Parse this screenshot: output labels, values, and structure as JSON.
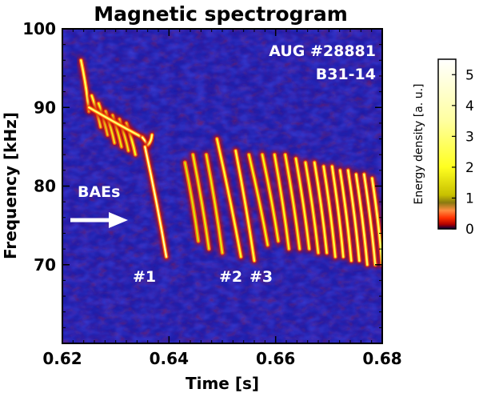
{
  "chart_data": {
    "type": "heatmap",
    "title": "Magnetic spectrogram",
    "xlabel": "Time [s]",
    "ylabel": "Frequency [kHz]",
    "xlim": [
      0.62,
      0.68
    ],
    "ylim": [
      60,
      100
    ],
    "x_ticks": [
      0.62,
      0.64,
      0.66,
      0.68
    ],
    "x_tick_labels": [
      "0.62",
      "0.64",
      "0.66",
      "0.68"
    ],
    "y_ticks": [
      70,
      80,
      90,
      100
    ],
    "y_tick_labels": [
      "70",
      "80",
      "90",
      "100"
    ],
    "annotations": {
      "shot": "AUG #28881",
      "coil": "B31-14",
      "mode_label": "BAEs",
      "burst_1": "#1",
      "burst_2": "#2",
      "burst_3": "#3"
    },
    "colorbar": {
      "label": "Energy density [a. u.]",
      "min": 0,
      "max": 5.5,
      "ticks": [
        0,
        1,
        2,
        3,
        4,
        5
      ],
      "tick_labels": [
        "0",
        "1",
        "2",
        "3",
        "4",
        "5"
      ],
      "stops": [
        {
          "value": 0.0,
          "color": "#000040"
        },
        {
          "value": 0.15,
          "color": "#b00000"
        },
        {
          "value": 0.35,
          "color": "#ff3000"
        },
        {
          "value": 0.6,
          "color": "#ff8c40"
        },
        {
          "value": 0.85,
          "color": "#8a7a10"
        },
        {
          "value": 1.1,
          "color": "#c8c000"
        },
        {
          "value": 2.0,
          "color": "#ffff20"
        },
        {
          "value": 3.5,
          "color": "#ffffa0"
        },
        {
          "value": 5.5,
          "color": "#ffffff"
        }
      ]
    },
    "bursts": [
      {
        "t0": 0.6235,
        "t1": 0.625,
        "f0": 96.0,
        "f1": 89.5,
        "energy": 3.0
      },
      {
        "t0": 0.6255,
        "t1": 0.6272,
        "f0": 91.5,
        "f1": 87.5,
        "energy": 2.5
      },
      {
        "t0": 0.6268,
        "t1": 0.6285,
        "f0": 90.5,
        "f1": 86.5,
        "energy": 2.2
      },
      {
        "t0": 0.6281,
        "t1": 0.6298,
        "f0": 89.5,
        "f1": 85.5,
        "energy": 2.2
      },
      {
        "t0": 0.6294,
        "t1": 0.6311,
        "f0": 89.0,
        "f1": 85.0,
        "energy": 2.0
      },
      {
        "t0": 0.6307,
        "t1": 0.6324,
        "f0": 88.5,
        "f1": 84.5,
        "energy": 2.0
      },
      {
        "t0": 0.632,
        "t1": 0.6337,
        "f0": 88.0,
        "f1": 84.0,
        "energy": 2.2
      },
      {
        "t0": 0.625,
        "t1": 0.635,
        "f0": 90.0,
        "f1": 86.2,
        "energy": 3.2
      },
      {
        "t0": 0.635,
        "t1": 0.636,
        "f0": 86.2,
        "f1": 85.2,
        "energy": 4.5
      },
      {
        "t0": 0.636,
        "t1": 0.6368,
        "f0": 85.2,
        "f1": 86.5,
        "energy": 3.5
      },
      {
        "t0": 0.6355,
        "t1": 0.6395,
        "f0": 85.0,
        "f1": 71.0,
        "energy": 4.8
      },
      {
        "t0": 0.643,
        "t1": 0.6455,
        "f0": 83.0,
        "f1": 73.0,
        "energy": 1.6
      },
      {
        "t0": 0.6445,
        "t1": 0.6475,
        "f0": 84.0,
        "f1": 72.0,
        "energy": 1.8
      },
      {
        "t0": 0.647,
        "t1": 0.65,
        "f0": 84.0,
        "f1": 71.5,
        "energy": 1.8
      },
      {
        "t0": 0.649,
        "t1": 0.6535,
        "f0": 86.0,
        "f1": 71.0,
        "energy": 2.5
      },
      {
        "t0": 0.6525,
        "t1": 0.656,
        "f0": 84.5,
        "f1": 70.5,
        "energy": 2.6
      },
      {
        "t0": 0.655,
        "t1": 0.6585,
        "f0": 84.0,
        "f1": 72.5,
        "energy": 2.0
      },
      {
        "t0": 0.6575,
        "t1": 0.6605,
        "f0": 84.0,
        "f1": 73.0,
        "energy": 2.0
      },
      {
        "t0": 0.6598,
        "t1": 0.6625,
        "f0": 84.0,
        "f1": 72.0,
        "energy": 2.2
      },
      {
        "t0": 0.6618,
        "t1": 0.6645,
        "f0": 84.0,
        "f1": 72.0,
        "energy": 2.2
      },
      {
        "t0": 0.6638,
        "t1": 0.6663,
        "f0": 83.5,
        "f1": 72.0,
        "energy": 2.4
      },
      {
        "t0": 0.6656,
        "t1": 0.668,
        "f0": 83.0,
        "f1": 71.5,
        "energy": 2.4
      },
      {
        "t0": 0.6673,
        "t1": 0.6696,
        "f0": 83.0,
        "f1": 71.5,
        "energy": 2.6
      },
      {
        "t0": 0.669,
        "t1": 0.6712,
        "f0": 82.5,
        "f1": 71.0,
        "energy": 2.6
      },
      {
        "t0": 0.6706,
        "t1": 0.6727,
        "f0": 82.5,
        "f1": 71.0,
        "energy": 2.8
      },
      {
        "t0": 0.6721,
        "t1": 0.6742,
        "f0": 82.0,
        "f1": 70.5,
        "energy": 2.8
      },
      {
        "t0": 0.6736,
        "t1": 0.6757,
        "f0": 82.0,
        "f1": 70.5,
        "energy": 3.0
      },
      {
        "t0": 0.6751,
        "t1": 0.6772,
        "f0": 81.5,
        "f1": 70.0,
        "energy": 3.0
      },
      {
        "t0": 0.6766,
        "t1": 0.6787,
        "f0": 81.5,
        "f1": 70.0,
        "energy": 3.2
      },
      {
        "t0": 0.6781,
        "t1": 0.68,
        "f0": 81.0,
        "f1": 70.0,
        "energy": 3.0
      }
    ]
  }
}
